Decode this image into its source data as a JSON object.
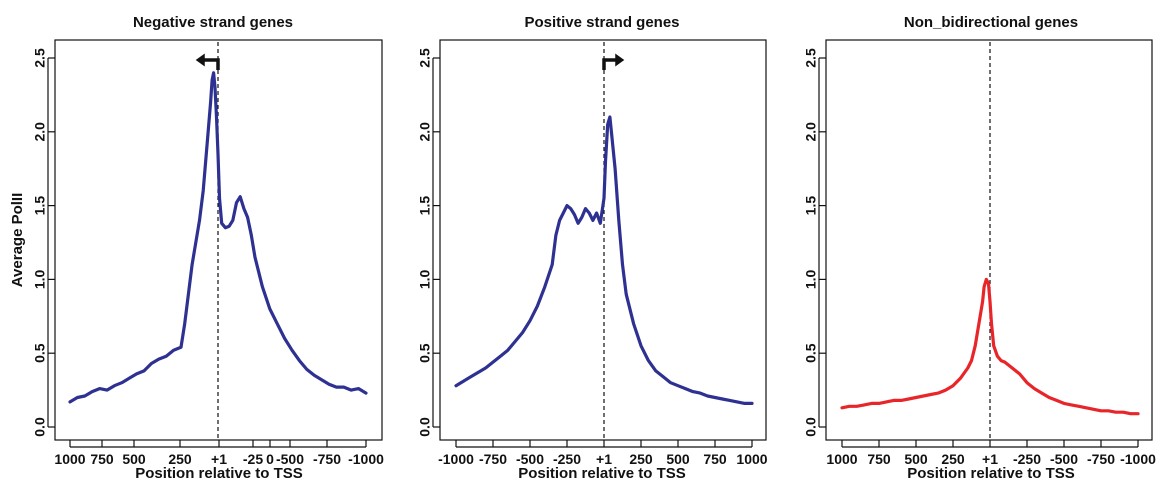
{
  "chart_data": [
    {
      "type": "line",
      "title": "Negative strand genes",
      "xlabel": "Position relative to TSS",
      "ylabel": "Average PolII",
      "x_tick_labels": [
        "1000",
        "750",
        "500",
        "250",
        "+1",
        "-25",
        "0",
        "-500",
        "-750",
        "-1000"
      ],
      "y_tick_labels": [
        "0.0",
        "0.5",
        "1.0",
        "1.5",
        "2.0",
        "2.5"
      ],
      "xlim": [
        1000,
        -1000
      ],
      "ylim": [
        0,
        2.5
      ],
      "grid": false,
      "tss_marker": "arrow-left",
      "series": [
        {
          "color": "#2e3192",
          "x": [
            1000,
            950,
            900,
            850,
            800,
            750,
            700,
            650,
            600,
            550,
            500,
            450,
            400,
            350,
            300,
            250,
            225,
            200,
            175,
            150,
            125,
            100,
            75,
            50,
            40,
            30,
            20,
            10,
            0,
            -10,
            -25,
            -50,
            -75,
            -100,
            -125,
            -150,
            -175,
            -200,
            -225,
            -250,
            -300,
            -350,
            -400,
            -450,
            -500,
            -550,
            -600,
            -650,
            -700,
            -750,
            -800,
            -850,
            -900,
            -950,
            -1000
          ],
          "y": [
            0.17,
            0.2,
            0.21,
            0.24,
            0.26,
            0.25,
            0.28,
            0.3,
            0.33,
            0.36,
            0.38,
            0.43,
            0.46,
            0.48,
            0.52,
            0.54,
            0.7,
            0.9,
            1.1,
            1.25,
            1.4,
            1.6,
            1.9,
            2.2,
            2.35,
            2.4,
            2.3,
            2.1,
            1.85,
            1.55,
            1.38,
            1.35,
            1.36,
            1.4,
            1.52,
            1.56,
            1.48,
            1.42,
            1.3,
            1.15,
            0.95,
            0.8,
            0.7,
            0.6,
            0.52,
            0.45,
            0.39,
            0.35,
            0.32,
            0.29,
            0.27,
            0.27,
            0.25,
            0.26,
            0.23
          ]
        }
      ]
    },
    {
      "type": "line",
      "title": "Positive strand genes",
      "xlabel": "Position relative to TSS",
      "ylabel": "",
      "x_tick_labels": [
        "-1000",
        "-750",
        "-500",
        "-250",
        "+1",
        "250",
        "500",
        "750",
        "1000"
      ],
      "y_tick_labels": [
        "0.0",
        "0.5",
        "1.0",
        "1.5",
        "2.0",
        "2.5"
      ],
      "xlim": [
        -1000,
        1000
      ],
      "ylim": [
        0,
        2.5
      ],
      "grid": false,
      "tss_marker": "arrow-right",
      "series": [
        {
          "color": "#2e3192",
          "x": [
            -1000,
            -950,
            -900,
            -850,
            -800,
            -750,
            -700,
            -650,
            -600,
            -550,
            -500,
            -450,
            -400,
            -350,
            -325,
            -300,
            -275,
            -250,
            -225,
            -200,
            -175,
            -150,
            -125,
            -100,
            -75,
            -50,
            -25,
            0,
            10,
            25,
            40,
            50,
            75,
            100,
            125,
            150,
            200,
            250,
            300,
            350,
            400,
            450,
            500,
            550,
            600,
            650,
            700,
            750,
            800,
            850,
            900,
            950,
            1000
          ],
          "y": [
            0.28,
            0.31,
            0.34,
            0.37,
            0.4,
            0.44,
            0.48,
            0.52,
            0.58,
            0.64,
            0.72,
            0.82,
            0.95,
            1.1,
            1.3,
            1.4,
            1.45,
            1.5,
            1.48,
            1.44,
            1.38,
            1.42,
            1.48,
            1.45,
            1.4,
            1.45,
            1.38,
            1.55,
            1.8,
            2.05,
            2.1,
            2.0,
            1.75,
            1.4,
            1.1,
            0.9,
            0.7,
            0.55,
            0.45,
            0.38,
            0.34,
            0.3,
            0.28,
            0.26,
            0.24,
            0.23,
            0.21,
            0.2,
            0.19,
            0.18,
            0.17,
            0.16,
            0.16
          ]
        }
      ]
    },
    {
      "type": "line",
      "title": "Non_bidirectional genes",
      "xlabel": "Position relative to TSS",
      "ylabel": "",
      "x_tick_labels": [
        "1000",
        "750",
        "500",
        "250",
        "+1",
        "-250",
        "-500",
        "-750",
        "-1000"
      ],
      "y_tick_labels": [
        "0.0",
        "0.5",
        "1.0",
        "1.5",
        "2.0",
        "2.5"
      ],
      "xlim": [
        1000,
        -1000
      ],
      "ylim": [
        0,
        2.5
      ],
      "grid": false,
      "series": [
        {
          "color": "#e8262a",
          "x": [
            1000,
            950,
            900,
            850,
            800,
            750,
            700,
            650,
            600,
            550,
            500,
            450,
            400,
            350,
            300,
            250,
            200,
            150,
            125,
            100,
            75,
            50,
            40,
            25,
            10,
            0,
            -10,
            -25,
            -50,
            -75,
            -100,
            -150,
            -200,
            -250,
            -300,
            -350,
            -400,
            -450,
            -500,
            -550,
            -600,
            -650,
            -700,
            -750,
            -800,
            -850,
            -900,
            -950,
            -1000
          ],
          "y": [
            0.13,
            0.14,
            0.14,
            0.15,
            0.16,
            0.16,
            0.17,
            0.18,
            0.18,
            0.19,
            0.2,
            0.21,
            0.22,
            0.23,
            0.25,
            0.28,
            0.33,
            0.4,
            0.45,
            0.55,
            0.7,
            0.85,
            0.95,
            1.0,
            0.97,
            0.85,
            0.7,
            0.55,
            0.48,
            0.45,
            0.44,
            0.4,
            0.36,
            0.3,
            0.26,
            0.23,
            0.2,
            0.18,
            0.16,
            0.15,
            0.14,
            0.13,
            0.12,
            0.11,
            0.11,
            0.1,
            0.1,
            0.09,
            0.09
          ]
        }
      ]
    }
  ]
}
